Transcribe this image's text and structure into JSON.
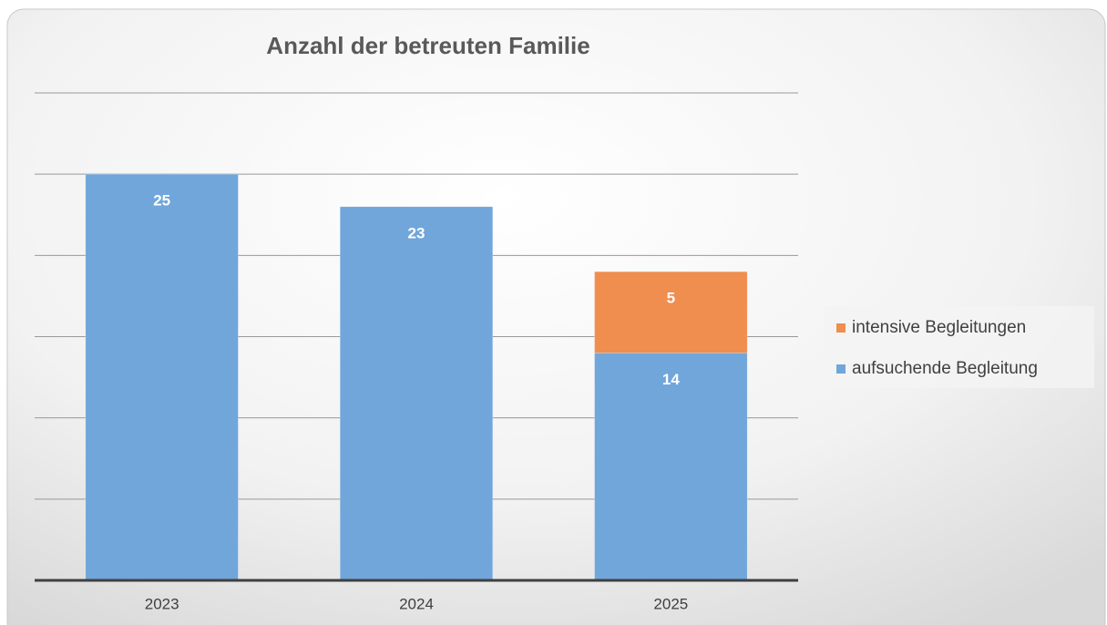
{
  "chart_data": {
    "type": "stacked_bar",
    "title": "Anzahl der betreuten Familie",
    "categories": [
      "2023",
      "2024",
      "2025"
    ],
    "series": [
      {
        "name": "aufsuchende Begleitung",
        "color": "#70a6da",
        "values": [
          25,
          23,
          14
        ]
      },
      {
        "name": "intensive Begleitungen",
        "color": "#ef8e4f",
        "values": [
          null,
          null,
          5
        ]
      }
    ],
    "ylim": [
      0,
      30
    ],
    "yticks": [
      0,
      5,
      10,
      15,
      20,
      25,
      30
    ],
    "grid": true,
    "legend": "right"
  }
}
